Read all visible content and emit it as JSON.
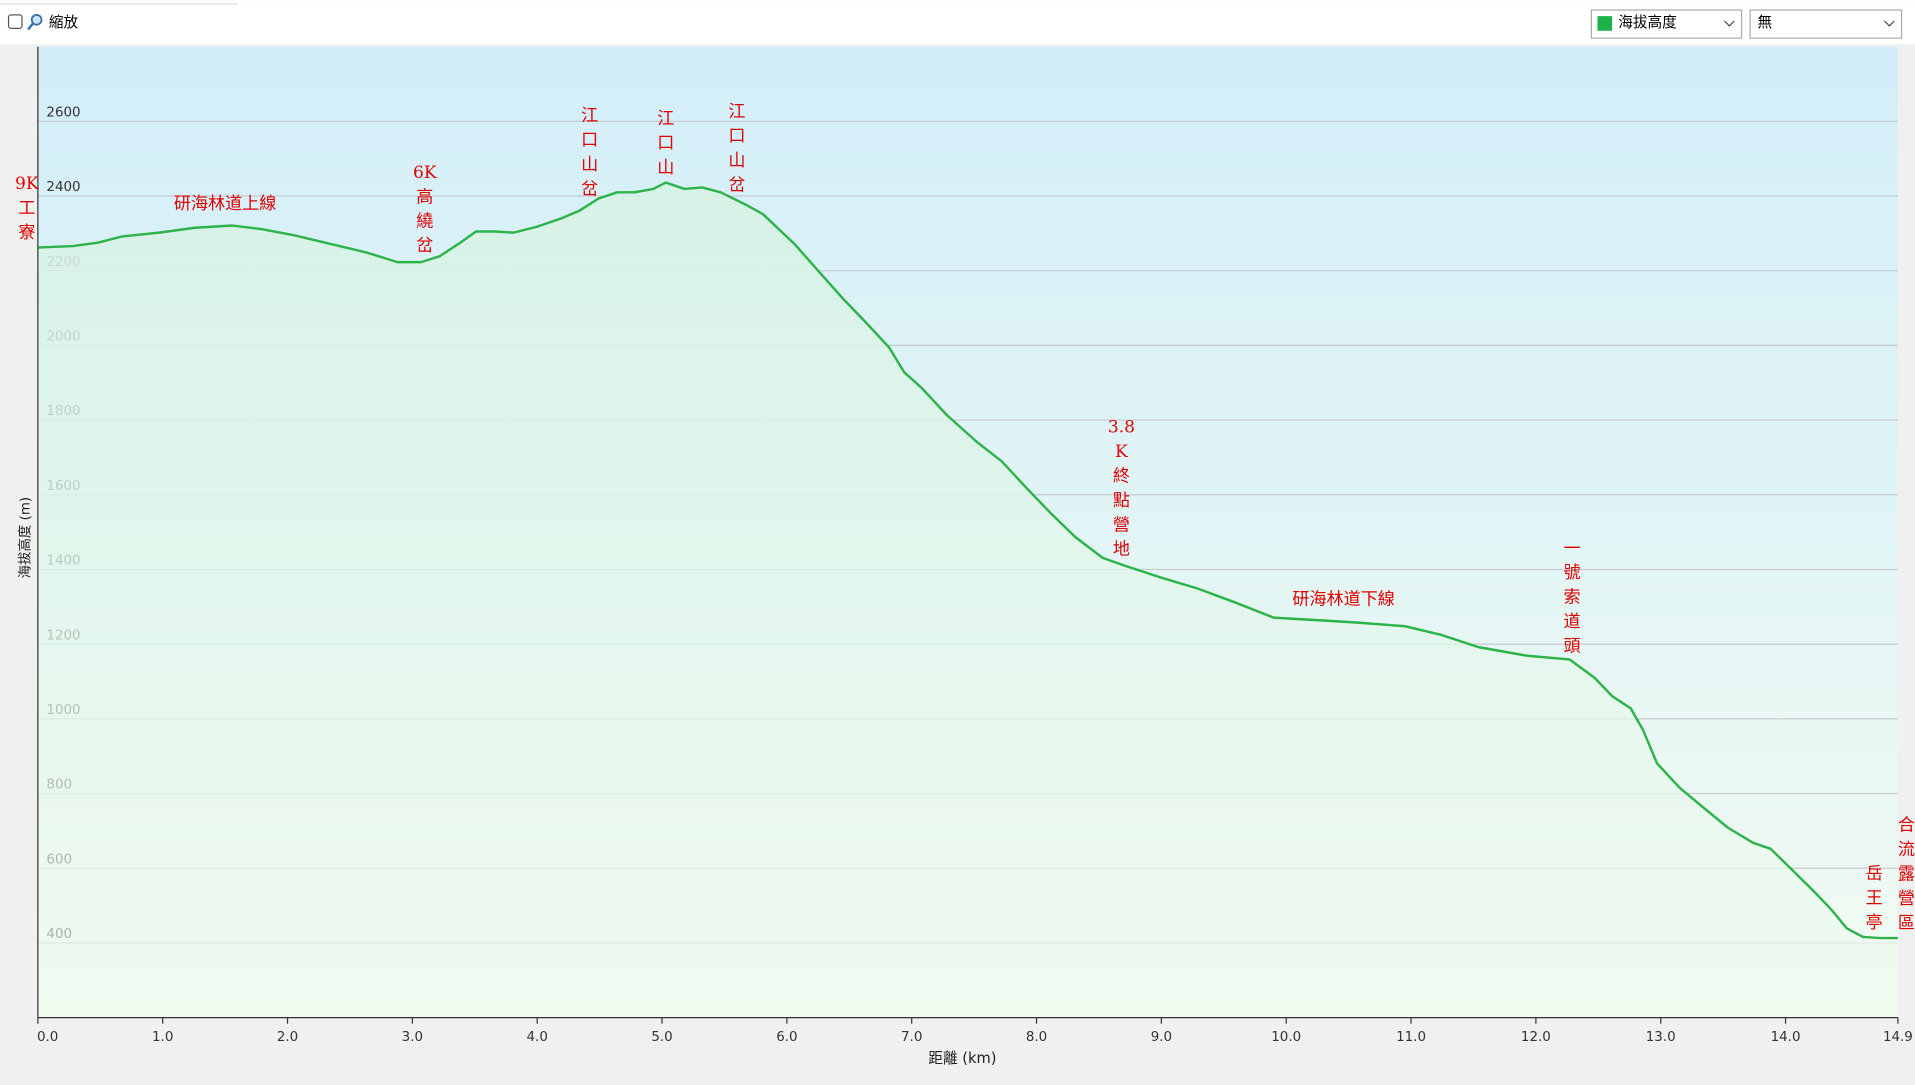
{
  "toolbar": {
    "zoom_label": "縮放",
    "option_select": "無"
  },
  "chart_data": {
    "type": "line",
    "x_label": "距離 (km)",
    "y_label": "海拔高度 (m)",
    "xlim": [
      0,
      14.9
    ],
    "ylim": [
      200,
      2800
    ],
    "xticks": [
      {
        "value": 0,
        "label": "0.0"
      },
      {
        "value": 1,
        "label": "1.0"
      },
      {
        "value": 2,
        "label": "2.0"
      },
      {
        "value": 3,
        "label": "3.0"
      },
      {
        "value": 4,
        "label": "4.0"
      },
      {
        "value": 5,
        "label": "5.0"
      },
      {
        "value": 6,
        "label": "6.0"
      },
      {
        "value": 7,
        "label": "7.0"
      },
      {
        "value": 8,
        "label": "8.0"
      },
      {
        "value": 9,
        "label": "9.0"
      },
      {
        "value": 10,
        "label": "10.0"
      },
      {
        "value": 11,
        "label": "11.0"
      },
      {
        "value": 12,
        "label": "12.0"
      },
      {
        "value": 13,
        "label": "13.0"
      },
      {
        "value": 14,
        "label": "14.0"
      },
      14.9
    ],
    "yticks": [
      400,
      600,
      800,
      1000,
      1200,
      1400,
      1600,
      1800,
      2000,
      2200,
      2400,
      2600
    ],
    "grid": true,
    "x": [
      0,
      0.28,
      0.48,
      0.68,
      0.97,
      1.26,
      1.56,
      1.8,
      2.05,
      2.34,
      2.63,
      2.88,
      3.07,
      3.22,
      3.37,
      3.51,
      3.66,
      3.81,
      4.0,
      4.2,
      4.34,
      4.49,
      4.64,
      4.78,
      4.93,
      5.03,
      5.18,
      5.32,
      5.47,
      5.67,
      5.81,
      6.06,
      6.25,
      6.45,
      6.64,
      6.82,
      6.94,
      7.08,
      7.28,
      7.52,
      7.72,
      7.92,
      8.11,
      8.31,
      8.53,
      8.7,
      8.99,
      9.29,
      9.58,
      9.9,
      10.26,
      10.56,
      10.95,
      11.24,
      11.54,
      11.93,
      12.27,
      12.47,
      12.61,
      12.76,
      12.86,
      12.97,
      13.15,
      13.35,
      13.54,
      13.74,
      13.88,
      14.03,
      14.23,
      14.37,
      14.49,
      14.62,
      14.76,
      14.9
    ],
    "series": [
      {
        "name": "海拔高度",
        "color": "#2eb34a",
        "values": [
          2262,
          2266,
          2275,
          2292,
          2302,
          2315,
          2321,
          2311,
          2295,
          2272,
          2249,
          2223,
          2223,
          2239,
          2272,
          2305,
          2305,
          2302,
          2318,
          2341,
          2361,
          2393,
          2410,
          2410,
          2419,
          2436,
          2419,
          2423,
          2410,
          2377,
          2351,
          2272,
          2200,
          2125,
          2059,
          1994,
          1928,
          1886,
          1814,
          1742,
          1690,
          1618,
          1552,
          1487,
          1431,
          1411,
          1379,
          1349,
          1313,
          1271,
          1264,
          1258,
          1248,
          1225,
          1192,
          1169,
          1159,
          1110,
          1061,
          1028,
          969,
          881,
          816,
          760,
          708,
          668,
          652,
          603,
          537,
          488,
          439,
          416,
          413,
          413
        ]
      }
    ],
    "annotations": [
      {
        "text": "9K工寮",
        "x": 0,
        "vertical": true
      },
      {
        "text": "研海林道上線",
        "x": 1.5,
        "vertical": false
      },
      {
        "text": "6K高繞岔",
        "x": 3.1,
        "vertical": true
      },
      {
        "text": "江口山岔",
        "x": 4.42,
        "vertical": true
      },
      {
        "text": "江口山",
        "x": 5.03,
        "vertical": true
      },
      {
        "text": "江口山岔",
        "x": 5.6,
        "vertical": true
      },
      {
        "text": "3.8K終點營地",
        "x": 8.68,
        "vertical": true
      },
      {
        "text": "研海林道下線",
        "x": 10.46,
        "vertical": false
      },
      {
        "text": "一號索道頭",
        "x": 12.29,
        "vertical": true
      },
      {
        "text": "岳王亭",
        "x": 14.71,
        "vertical": true
      },
      {
        "text": "合流露營區",
        "x": 14.9,
        "vertical": true
      }
    ]
  }
}
